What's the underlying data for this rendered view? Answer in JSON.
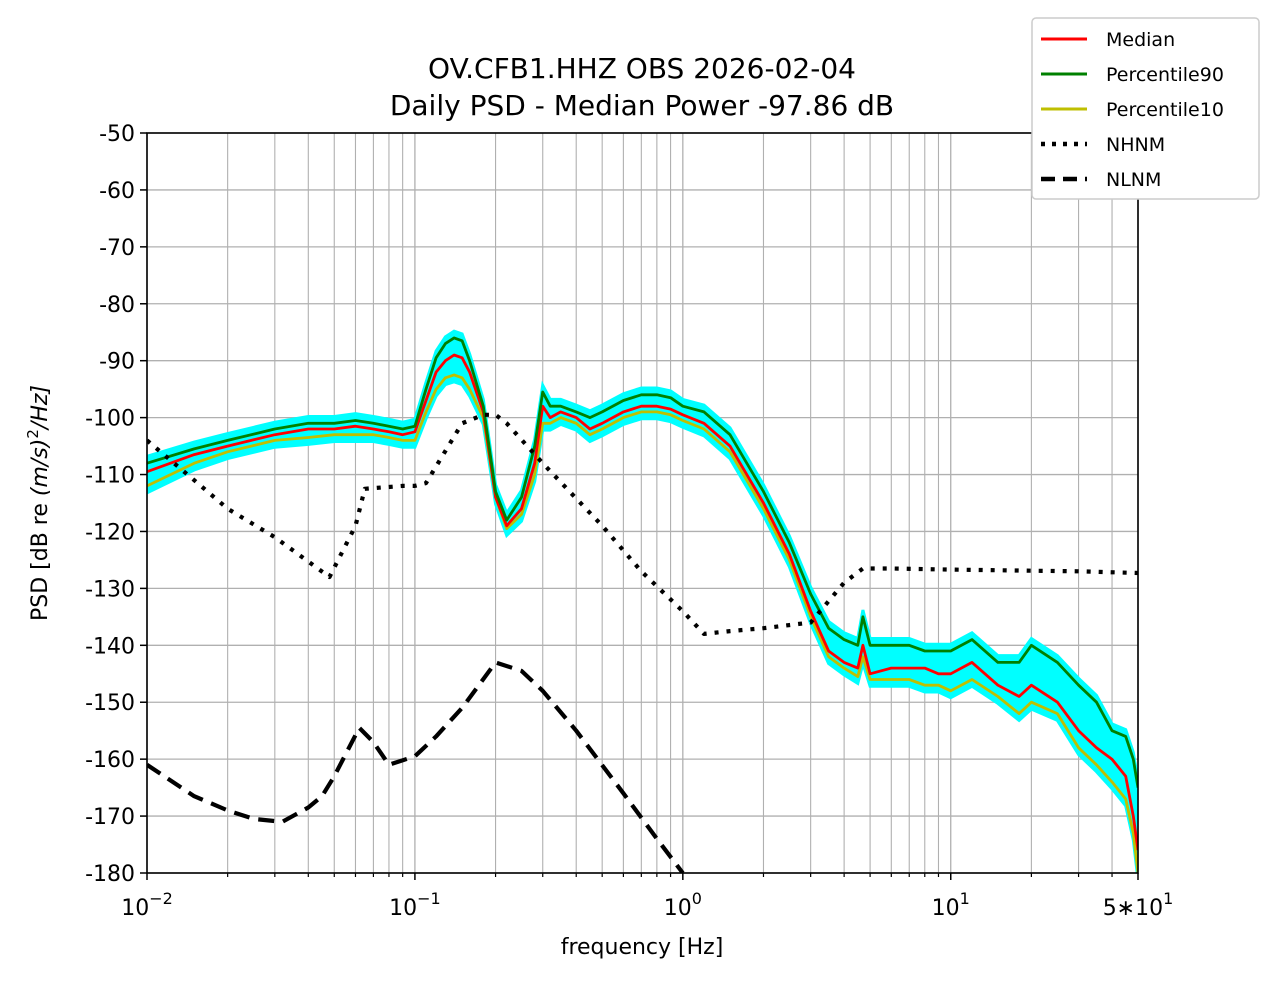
{
  "chart_data": {
    "type": "line",
    "title": "OV.CFB1.HHZ OBS 2026-02-04",
    "subtitle": "Daily PSD - Median Power -97.86 dB",
    "xlabel": "frequency [Hz]",
    "ylabel_prefix": "PSD [dB re ",
    "ylabel_math": "(m/s)",
    "ylabel_sup": "2",
    "ylabel_suffix": "/Hz]",
    "x_scale": "log",
    "xlim": [
      0.01,
      50
    ],
    "ylim": [
      -180,
      -50
    ],
    "grid": true,
    "legend_placement": "top-right",
    "x_ticks": [
      {
        "value": 0.01,
        "base": "10",
        "exp": "−2",
        "prefix": ""
      },
      {
        "value": 0.1,
        "base": "10",
        "exp": "−1",
        "prefix": ""
      },
      {
        "value": 1,
        "base": "10",
        "exp": "0",
        "prefix": ""
      },
      {
        "value": 10,
        "base": "10",
        "exp": "1",
        "prefix": ""
      },
      {
        "value": 50,
        "base": "10",
        "exp": "1",
        "prefix": "5∗"
      }
    ],
    "y_ticks": [
      -50,
      -60,
      -70,
      -80,
      -90,
      -100,
      -110,
      -120,
      -130,
      -140,
      -150,
      -160,
      -170,
      -180
    ],
    "y_tick_labels": [
      "-50",
      "-60",
      "-70",
      "-80",
      "-90",
      "-100",
      "-110",
      "-120",
      "-130",
      "-140",
      "-150",
      "-160",
      "-170",
      "-180"
    ],
    "colors": {
      "median": "#ff0000",
      "p90": "#008000",
      "p10": "#bfbf00",
      "envelope": "#00ffff",
      "model": "#000000"
    },
    "series": [
      {
        "name": "Median",
        "style": "solid",
        "color": "#ff0000",
        "points": [
          [
            0.01,
            -109.5
          ],
          [
            0.015,
            -106.5
          ],
          [
            0.02,
            -105
          ],
          [
            0.03,
            -103
          ],
          [
            0.04,
            -102
          ],
          [
            0.05,
            -102
          ],
          [
            0.06,
            -101.5
          ],
          [
            0.07,
            -102
          ],
          [
            0.08,
            -102.5
          ],
          [
            0.09,
            -103
          ],
          [
            0.1,
            -102.5
          ],
          [
            0.11,
            -97
          ],
          [
            0.12,
            -92
          ],
          [
            0.13,
            -90
          ],
          [
            0.14,
            -89
          ],
          [
            0.15,
            -89.5
          ],
          [
            0.16,
            -92
          ],
          [
            0.18,
            -99
          ],
          [
            0.2,
            -114
          ],
          [
            0.22,
            -119
          ],
          [
            0.25,
            -116
          ],
          [
            0.28,
            -108
          ],
          [
            0.3,
            -98
          ],
          [
            0.32,
            -100
          ],
          [
            0.35,
            -99
          ],
          [
            0.4,
            -100
          ],
          [
            0.45,
            -102
          ],
          [
            0.5,
            -101
          ],
          [
            0.6,
            -99
          ],
          [
            0.7,
            -98
          ],
          [
            0.8,
            -98
          ],
          [
            0.9,
            -98.5
          ],
          [
            1,
            -99.5
          ],
          [
            1.2,
            -101
          ],
          [
            1.5,
            -105
          ],
          [
            2,
            -115
          ],
          [
            2.5,
            -124
          ],
          [
            3,
            -134
          ],
          [
            3.5,
            -141
          ],
          [
            4,
            -143
          ],
          [
            4.5,
            -144
          ],
          [
            4.7,
            -140
          ],
          [
            5,
            -145
          ],
          [
            6,
            -144
          ],
          [
            7,
            -144
          ],
          [
            8,
            -144
          ],
          [
            9,
            -145
          ],
          [
            10,
            -145
          ],
          [
            12,
            -143
          ],
          [
            15,
            -147
          ],
          [
            18,
            -149
          ],
          [
            20,
            -147
          ],
          [
            25,
            -150
          ],
          [
            30,
            -155
          ],
          [
            35,
            -158
          ],
          [
            40,
            -160
          ],
          [
            45,
            -163
          ],
          [
            48,
            -170
          ],
          [
            50,
            -176
          ]
        ]
      },
      {
        "name": "Percentile90",
        "style": "solid",
        "color": "#008000",
        "points": [
          [
            0.01,
            -108
          ],
          [
            0.015,
            -105.5
          ],
          [
            0.02,
            -104
          ],
          [
            0.03,
            -102
          ],
          [
            0.04,
            -101
          ],
          [
            0.05,
            -101
          ],
          [
            0.06,
            -100.5
          ],
          [
            0.07,
            -101
          ],
          [
            0.08,
            -101.5
          ],
          [
            0.09,
            -102
          ],
          [
            0.1,
            -101.5
          ],
          [
            0.11,
            -95
          ],
          [
            0.12,
            -89.5
          ],
          [
            0.13,
            -87
          ],
          [
            0.14,
            -86
          ],
          [
            0.15,
            -86.5
          ],
          [
            0.16,
            -90
          ],
          [
            0.18,
            -98
          ],
          [
            0.2,
            -113
          ],
          [
            0.22,
            -118
          ],
          [
            0.25,
            -114
          ],
          [
            0.28,
            -105
          ],
          [
            0.3,
            -95.5
          ],
          [
            0.32,
            -98
          ],
          [
            0.35,
            -98
          ],
          [
            0.4,
            -99
          ],
          [
            0.45,
            -100
          ],
          [
            0.5,
            -99
          ],
          [
            0.6,
            -97
          ],
          [
            0.7,
            -96
          ],
          [
            0.8,
            -96
          ],
          [
            0.9,
            -96.5
          ],
          [
            1,
            -98
          ],
          [
            1.2,
            -99
          ],
          [
            1.5,
            -103
          ],
          [
            2,
            -113
          ],
          [
            2.5,
            -122
          ],
          [
            3,
            -131
          ],
          [
            3.5,
            -137
          ],
          [
            4,
            -139
          ],
          [
            4.5,
            -140
          ],
          [
            4.7,
            -135
          ],
          [
            5,
            -140
          ],
          [
            6,
            -140
          ],
          [
            7,
            -140
          ],
          [
            8,
            -141
          ],
          [
            9,
            -141
          ],
          [
            10,
            -141
          ],
          [
            12,
            -139
          ],
          [
            15,
            -143
          ],
          [
            18,
            -143
          ],
          [
            20,
            -140
          ],
          [
            25,
            -143
          ],
          [
            30,
            -147
          ],
          [
            35,
            -150
          ],
          [
            40,
            -155
          ],
          [
            45,
            -156
          ],
          [
            48,
            -160
          ],
          [
            50,
            -165
          ]
        ]
      },
      {
        "name": "Percentile10",
        "style": "solid",
        "color": "#bfbf00",
        "points": [
          [
            0.01,
            -112
          ],
          [
            0.015,
            -108
          ],
          [
            0.02,
            -106
          ],
          [
            0.03,
            -104
          ],
          [
            0.04,
            -103.5
          ],
          [
            0.05,
            -103
          ],
          [
            0.06,
            -103
          ],
          [
            0.07,
            -103
          ],
          [
            0.08,
            -103.5
          ],
          [
            0.09,
            -104
          ],
          [
            0.1,
            -104
          ],
          [
            0.11,
            -99
          ],
          [
            0.12,
            -95
          ],
          [
            0.13,
            -93
          ],
          [
            0.14,
            -92.5
          ],
          [
            0.15,
            -93
          ],
          [
            0.16,
            -95
          ],
          [
            0.18,
            -100
          ],
          [
            0.2,
            -114
          ],
          [
            0.22,
            -119.5
          ],
          [
            0.25,
            -117
          ],
          [
            0.28,
            -110
          ],
          [
            0.3,
            -101
          ],
          [
            0.32,
            -101
          ],
          [
            0.35,
            -100
          ],
          [
            0.4,
            -101
          ],
          [
            0.45,
            -103
          ],
          [
            0.5,
            -102
          ],
          [
            0.6,
            -100
          ],
          [
            0.7,
            -99
          ],
          [
            0.8,
            -99
          ],
          [
            0.9,
            -99.5
          ],
          [
            1,
            -100.5
          ],
          [
            1.2,
            -102
          ],
          [
            1.5,
            -106
          ],
          [
            2,
            -116
          ],
          [
            2.5,
            -125
          ],
          [
            3,
            -135
          ],
          [
            3.5,
            -142
          ],
          [
            4,
            -144
          ],
          [
            4.5,
            -145.5
          ],
          [
            4.7,
            -142
          ],
          [
            5,
            -146
          ],
          [
            6,
            -146
          ],
          [
            7,
            -146
          ],
          [
            8,
            -147
          ],
          [
            9,
            -147
          ],
          [
            10,
            -148
          ],
          [
            12,
            -146
          ],
          [
            15,
            -149
          ],
          [
            18,
            -152
          ],
          [
            20,
            -150
          ],
          [
            25,
            -152
          ],
          [
            30,
            -158
          ],
          [
            35,
            -161
          ],
          [
            40,
            -164
          ],
          [
            45,
            -167
          ],
          [
            48,
            -173
          ],
          [
            50,
            -180
          ]
        ]
      },
      {
        "name": "NHNM",
        "style": "dotted",
        "color": "#000000",
        "points": [
          [
            0.01,
            -104
          ],
          [
            0.015,
            -111
          ],
          [
            0.02,
            -116
          ],
          [
            0.03,
            -121
          ],
          [
            0.048,
            -128
          ],
          [
            0.06,
            -119
          ],
          [
            0.065,
            -112.5
          ],
          [
            0.09,
            -112
          ],
          [
            0.1,
            -112
          ],
          [
            0.11,
            -111.5
          ],
          [
            0.15,
            -101
          ],
          [
            0.18,
            -99.5
          ],
          [
            0.2,
            -99.5
          ],
          [
            0.22,
            -101
          ],
          [
            0.3,
            -108
          ],
          [
            0.5,
            -119
          ],
          [
            0.7,
            -127
          ],
          [
            1,
            -134
          ],
          [
            1.2,
            -138
          ],
          [
            1.5,
            -137.5
          ],
          [
            2,
            -137
          ],
          [
            3,
            -136
          ],
          [
            4,
            -129
          ],
          [
            4.7,
            -126.5
          ],
          [
            6,
            -126.5
          ],
          [
            10,
            -126.7
          ],
          [
            20,
            -126.9
          ],
          [
            30,
            -127
          ],
          [
            50,
            -127.3
          ]
        ]
      },
      {
        "name": "NLNM",
        "style": "dashed",
        "color": "#000000",
        "points": [
          [
            0.01,
            -161
          ],
          [
            0.015,
            -166.5
          ],
          [
            0.02,
            -169
          ],
          [
            0.025,
            -170.5
          ],
          [
            0.032,
            -171
          ],
          [
            0.04,
            -168.5
          ],
          [
            0.045,
            -166.5
          ],
          [
            0.05,
            -163
          ],
          [
            0.062,
            -154.5
          ],
          [
            0.07,
            -157
          ],
          [
            0.08,
            -161
          ],
          [
            0.1,
            -159.5
          ],
          [
            0.12,
            -156
          ],
          [
            0.15,
            -151
          ],
          [
            0.2,
            -143
          ],
          [
            0.25,
            -144.5
          ],
          [
            0.3,
            -148
          ],
          [
            0.4,
            -155
          ],
          [
            0.6,
            -166
          ],
          [
            0.8,
            -174
          ],
          [
            1,
            -180
          ]
        ]
      }
    ]
  }
}
